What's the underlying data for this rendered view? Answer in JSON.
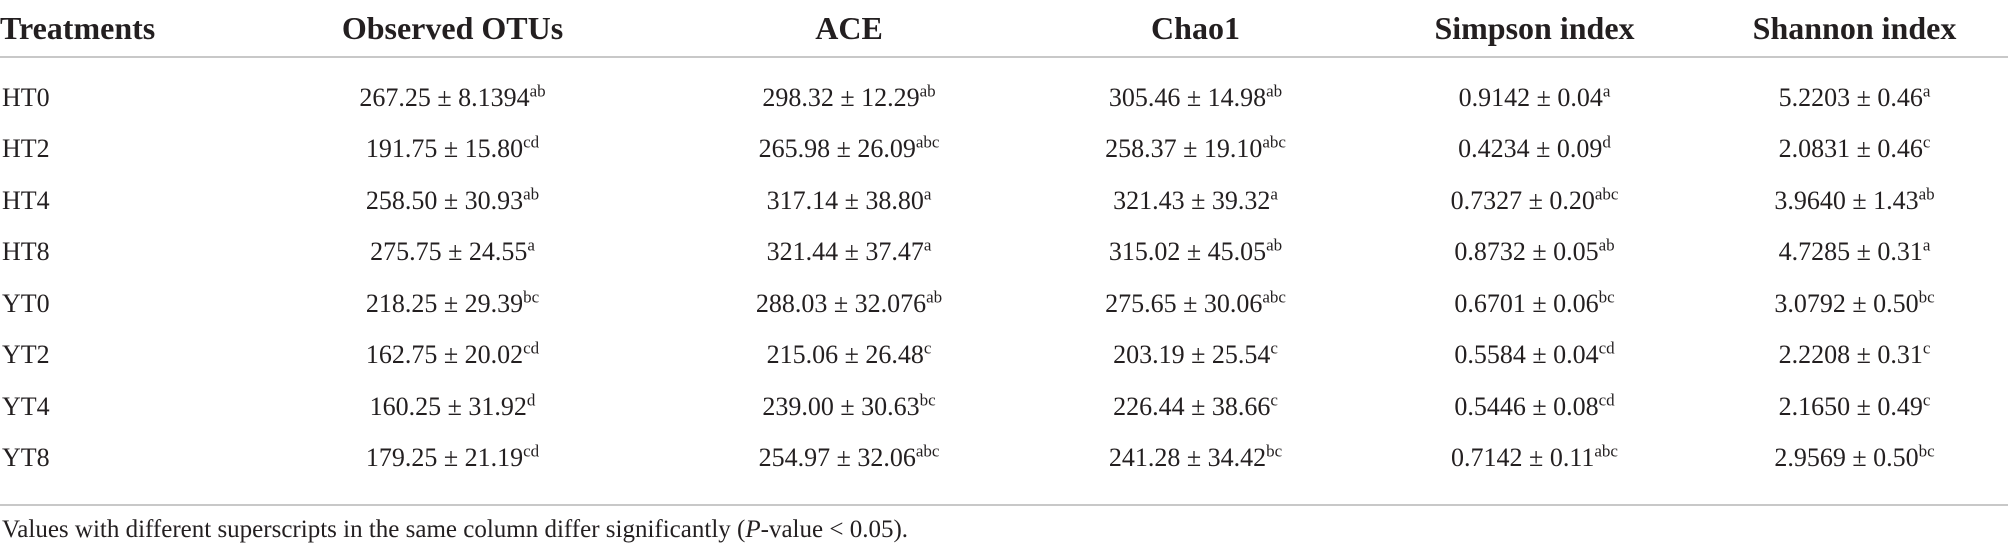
{
  "table": {
    "headers": [
      "Treatments",
      "Observed OTUs",
      "ACE",
      "Chao1",
      "Simpson index",
      "Shannon index"
    ],
    "rows": [
      {
        "treatment": "HT0",
        "cells": [
          {
            "value": "267.25 ± 8.1394",
            "sup": "ab"
          },
          {
            "value": "298.32 ± 12.29",
            "sup": "ab"
          },
          {
            "value": "305.46 ± 14.98",
            "sup": "ab"
          },
          {
            "value": "0.9142 ± 0.04",
            "sup": "a"
          },
          {
            "value": "5.2203 ± 0.46",
            "sup": "a"
          }
        ]
      },
      {
        "treatment": "HT2",
        "cells": [
          {
            "value": "191.75 ± 15.80",
            "sup": "cd"
          },
          {
            "value": "265.98 ± 26.09",
            "sup": "abc"
          },
          {
            "value": "258.37 ± 19.10",
            "sup": "abc"
          },
          {
            "value": "0.4234 ± 0.09",
            "sup": "d"
          },
          {
            "value": "2.0831 ± 0.46",
            "sup": "c"
          }
        ]
      },
      {
        "treatment": "HT4",
        "cells": [
          {
            "value": "258.50 ± 30.93",
            "sup": "ab"
          },
          {
            "value": "317.14 ± 38.80",
            "sup": "a"
          },
          {
            "value": "321.43 ± 39.32",
            "sup": "a"
          },
          {
            "value": "0.7327 ± 0.20",
            "sup": "abc"
          },
          {
            "value": "3.9640 ± 1.43",
            "sup": "ab"
          }
        ]
      },
      {
        "treatment": "HT8",
        "cells": [
          {
            "value": "275.75 ± 24.55",
            "sup": "a"
          },
          {
            "value": "321.44 ± 37.47",
            "sup": "a"
          },
          {
            "value": "315.02 ± 45.05",
            "sup": "ab"
          },
          {
            "value": "0.8732 ± 0.05",
            "sup": "ab"
          },
          {
            "value": "4.7285 ± 0.31",
            "sup": "a"
          }
        ]
      },
      {
        "treatment": "YT0",
        "cells": [
          {
            "value": "218.25 ± 29.39",
            "sup": "bc"
          },
          {
            "value": "288.03 ± 32.076",
            "sup": "ab"
          },
          {
            "value": "275.65 ± 30.06",
            "sup": "abc"
          },
          {
            "value": "0.6701 ± 0.06",
            "sup": "bc"
          },
          {
            "value": "3.0792 ± 0.50",
            "sup": "bc"
          }
        ]
      },
      {
        "treatment": "YT2",
        "cells": [
          {
            "value": "162.75 ± 20.02",
            "sup": "cd"
          },
          {
            "value": "215.06 ± 26.48",
            "sup": "c"
          },
          {
            "value": "203.19 ± 25.54",
            "sup": "c"
          },
          {
            "value": "0.5584 ± 0.04",
            "sup": "cd"
          },
          {
            "value": "2.2208 ± 0.31",
            "sup": "c"
          }
        ]
      },
      {
        "treatment": "YT4",
        "cells": [
          {
            "value": "160.25 ± 31.92",
            "sup": "d"
          },
          {
            "value": "239.00 ± 30.63",
            "sup": "bc"
          },
          {
            "value": "226.44 ± 38.66",
            "sup": "c"
          },
          {
            "value": "0.5446 ± 0.08",
            "sup": "cd"
          },
          {
            "value": "2.1650 ± 0.49",
            "sup": "c"
          }
        ]
      },
      {
        "treatment": "YT8",
        "cells": [
          {
            "value": "179.25 ± 21.19",
            "sup": "cd"
          },
          {
            "value": "254.97 ± 32.06",
            "sup": "abc"
          },
          {
            "value": "241.28 ± 34.42",
            "sup": "bc"
          },
          {
            "value": "0.7142 ± 0.11",
            "sup": "abc"
          },
          {
            "value": "2.9569 ± 0.50",
            "sup": "bc"
          }
        ]
      }
    ]
  },
  "footnote": {
    "before": "Values with different superscripts in the same column differ significantly (",
    "italic": "P",
    "after": "-value < 0.05)."
  }
}
